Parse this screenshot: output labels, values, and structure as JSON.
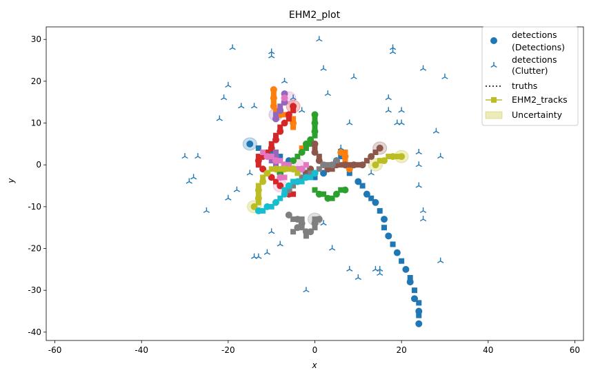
{
  "chart_data": {
    "type": "scatter",
    "title": "EHM2_plot",
    "xlabel": "x",
    "ylabel": "y",
    "xlim": [
      -62,
      62
    ],
    "ylim": [
      -42,
      33
    ],
    "xticks": [
      -60,
      -40,
      -20,
      0,
      20,
      40,
      60
    ],
    "yticks": [
      -40,
      -30,
      -20,
      -10,
      0,
      10,
      20,
      30
    ],
    "grid": false,
    "legend": {
      "location": "top-right",
      "entries": [
        {
          "label_lines": [
            "detections",
            "(Detections)"
          ],
          "marker": "circle",
          "color": "#1f77b4"
        },
        {
          "label_lines": [
            "detections",
            "(Clutter)"
          ],
          "marker": "tri_up",
          "color": "#1f77b4"
        },
        {
          "label_lines": [
            "truths"
          ],
          "marker": "dotted-line",
          "color": "#000000"
        },
        {
          "label_lines": [
            "EHM2_tracks"
          ],
          "marker": "line-square",
          "color": "#bcbd22"
        },
        {
          "label_lines": [
            "Uncertainty"
          ],
          "marker": "patch",
          "color": "#bcbd22"
        }
      ]
    },
    "clutter": [
      [
        -25,
        -11
      ],
      [
        -29,
        -4
      ],
      [
        -28,
        -3
      ],
      [
        -30,
        2
      ],
      [
        -27,
        2
      ],
      [
        -22,
        11
      ],
      [
        -21,
        16
      ],
      [
        -20,
        19
      ],
      [
        -20,
        -8
      ],
      [
        -17,
        14
      ],
      [
        -18,
        -6
      ],
      [
        -15,
        -2
      ],
      [
        -14,
        14
      ],
      [
        -14,
        -22
      ],
      [
        -13,
        -22
      ],
      [
        -11,
        -21
      ],
      [
        -10,
        -16
      ],
      [
        -8,
        -19
      ],
      [
        -10,
        26
      ],
      [
        -10,
        27
      ],
      [
        -7,
        20
      ],
      [
        -5,
        16
      ],
      [
        -3,
        13
      ],
      [
        -2,
        -30
      ],
      [
        -19,
        28
      ],
      [
        1,
        30
      ],
      [
        2,
        23
      ],
      [
        2,
        -14
      ],
      [
        3,
        17
      ],
      [
        4,
        -20
      ],
      [
        6,
        4
      ],
      [
        8,
        -25
      ],
      [
        8,
        10
      ],
      [
        9,
        21
      ],
      [
        10,
        -27
      ],
      [
        13,
        -2
      ],
      [
        14,
        -25
      ],
      [
        15,
        -25
      ],
      [
        15,
        -26
      ],
      [
        17,
        13
      ],
      [
        17,
        16
      ],
      [
        18,
        27
      ],
      [
        18,
        28
      ],
      [
        19,
        10
      ],
      [
        20,
        13
      ],
      [
        20,
        10
      ],
      [
        24,
        3
      ],
      [
        24,
        0
      ],
      [
        24,
        -5
      ],
      [
        25,
        -11
      ],
      [
        25,
        -13
      ],
      [
        25,
        23
      ],
      [
        28,
        8
      ],
      [
        30,
        21
      ],
      [
        29,
        -23
      ],
      [
        29,
        2
      ]
    ],
    "tracks": [
      {
        "color": "#1f77b4",
        "points": [
          [
            -15,
            5
          ],
          [
            -13,
            4
          ],
          [
            -10,
            3
          ],
          [
            -8,
            2
          ],
          [
            -6,
            1
          ],
          [
            -4,
            -1
          ],
          [
            -2,
            -2
          ],
          [
            0,
            -3
          ],
          [
            2,
            -2
          ],
          [
            3,
            -1
          ],
          [
            5,
            1
          ],
          [
            6,
            2
          ],
          [
            7,
            0
          ],
          [
            8,
            -2
          ],
          [
            10,
            -4
          ],
          [
            11,
            -5
          ],
          [
            12,
            -7
          ],
          [
            13,
            -8
          ],
          [
            14,
            -9
          ],
          [
            15,
            -11
          ],
          [
            16,
            -13
          ],
          [
            16,
            -15
          ],
          [
            17,
            -17
          ],
          [
            18,
            -19
          ],
          [
            19,
            -21
          ],
          [
            20,
            -23
          ],
          [
            21,
            -25
          ],
          [
            22,
            -27
          ],
          [
            22,
            -28
          ],
          [
            23,
            -30
          ],
          [
            23,
            -32
          ],
          [
            24,
            -33
          ],
          [
            24,
            -35
          ],
          [
            24,
            -36
          ],
          [
            24,
            -38
          ]
        ]
      },
      {
        "color": "#ff7f0e",
        "points": [
          [
            -9.5,
            18
          ],
          [
            -9.5,
            17
          ],
          [
            -9.5,
            16
          ],
          [
            -9.5,
            15
          ],
          [
            -9.5,
            14
          ],
          [
            -9,
            13
          ],
          [
            -8,
            12
          ],
          [
            -7,
            12
          ],
          [
            -6,
            12
          ],
          [
            -5,
            11
          ],
          [
            -5,
            10
          ],
          [
            -5,
            9
          ],
          [
            6,
            3
          ],
          [
            7,
            3
          ],
          [
            7,
            2
          ],
          [
            7,
            1
          ],
          [
            8,
            -1
          ],
          [
            -3,
            4
          ],
          [
            -3,
            3
          ]
        ]
      },
      {
        "color": "#2ca02c",
        "points": [
          [
            0,
            12
          ],
          [
            0,
            11
          ],
          [
            0,
            10
          ],
          [
            0,
            9
          ],
          [
            0,
            8
          ],
          [
            0,
            7
          ],
          [
            -1,
            6
          ],
          [
            -1,
            5
          ],
          [
            -2,
            5
          ],
          [
            -2,
            4
          ],
          [
            -3,
            3
          ],
          [
            -4,
            2
          ],
          [
            -5,
            1
          ],
          [
            -6,
            0
          ],
          [
            -7,
            0
          ],
          [
            -8,
            -1
          ],
          [
            -8,
            -2
          ],
          [
            0,
            -6
          ],
          [
            1,
            -7
          ],
          [
            2,
            -7
          ],
          [
            3,
            -8
          ],
          [
            4,
            -8
          ],
          [
            5,
            -7
          ],
          [
            6,
            -6
          ],
          [
            7,
            -6
          ]
        ]
      },
      {
        "color": "#d62728",
        "points": [
          [
            -5,
            14
          ],
          [
            -5,
            13
          ],
          [
            -6,
            12
          ],
          [
            -6,
            11
          ],
          [
            -7,
            10
          ],
          [
            -8,
            9
          ],
          [
            -8,
            8
          ],
          [
            -9,
            7
          ],
          [
            -9,
            6
          ],
          [
            -10,
            5
          ],
          [
            -10,
            4
          ],
          [
            -11,
            3
          ],
          [
            -12,
            2
          ],
          [
            -13,
            2
          ],
          [
            -13,
            1
          ],
          [
            -13,
            0
          ],
          [
            -12,
            -1
          ],
          [
            -11,
            -2
          ],
          [
            -10,
            -3
          ],
          [
            -9,
            -4
          ],
          [
            -8,
            -5
          ],
          [
            -7,
            -6
          ],
          [
            -6,
            -7
          ],
          [
            -5,
            -7
          ]
        ]
      },
      {
        "color": "#9467bd",
        "points": [
          [
            -7,
            17
          ],
          [
            -7,
            16
          ],
          [
            -7,
            15
          ],
          [
            -8,
            14
          ],
          [
            -8,
            13
          ],
          [
            -9,
            12
          ],
          [
            -9,
            11
          ],
          [
            -10,
            1
          ],
          [
            -10,
            2
          ],
          [
            -9,
            3
          ],
          [
            -9,
            2
          ],
          [
            -9,
            0
          ]
        ]
      },
      {
        "color": "#8c564b",
        "points": [
          [
            0,
            5
          ],
          [
            0,
            4
          ],
          [
            0,
            3
          ],
          [
            1,
            2
          ],
          [
            1,
            1
          ],
          [
            2,
            0
          ],
          [
            3,
            -1
          ],
          [
            4,
            -1
          ],
          [
            5,
            0
          ],
          [
            6,
            0
          ],
          [
            7,
            0
          ],
          [
            8,
            0
          ],
          [
            9,
            0
          ],
          [
            10,
            0
          ],
          [
            11,
            0
          ],
          [
            12,
            1
          ],
          [
            13,
            2
          ],
          [
            14,
            3
          ],
          [
            15,
            4
          ],
          [
            -2,
            -2
          ],
          [
            -1,
            -1
          ]
        ]
      },
      {
        "color": "#e377c2",
        "points": [
          [
            -7,
            16
          ],
          [
            -12,
            3
          ],
          [
            -11,
            2
          ],
          [
            -10,
            2
          ],
          [
            -9,
            1
          ],
          [
            -8,
            1
          ],
          [
            -7,
            0
          ],
          [
            -6,
            0
          ],
          [
            -5,
            -1
          ],
          [
            -4,
            -1
          ],
          [
            -3,
            -1
          ],
          [
            -2,
            0
          ],
          [
            -8,
            -3
          ],
          [
            -7,
            -3
          ]
        ]
      },
      {
        "color": "#7f7f7f",
        "points": [
          [
            -6,
            -6
          ],
          [
            -5,
            -5
          ],
          [
            -4,
            -4
          ],
          [
            -3,
            -3
          ],
          [
            -2,
            -3
          ],
          [
            -1,
            -2
          ],
          [
            0,
            -2
          ],
          [
            1,
            -1
          ],
          [
            2,
            0
          ],
          [
            3,
            0
          ],
          [
            4,
            0
          ],
          [
            5,
            1
          ],
          [
            -6,
            -12
          ],
          [
            -5,
            -13
          ],
          [
            -4,
            -13
          ],
          [
            -3,
            -13
          ],
          [
            -3,
            -14
          ],
          [
            -3,
            -15
          ],
          [
            -2,
            -16
          ],
          [
            -2,
            -17
          ],
          [
            -1,
            -16
          ],
          [
            0,
            -15
          ],
          [
            0,
            -14
          ],
          [
            0,
            -13
          ],
          [
            1,
            -13
          ],
          [
            -5,
            -16
          ],
          [
            -4,
            -15
          ]
        ]
      },
      {
        "color": "#bcbd22",
        "points": [
          [
            -14,
            -10
          ],
          [
            -13,
            -9
          ],
          [
            -13,
            -8
          ],
          [
            -13,
            -7
          ],
          [
            -13,
            -6
          ],
          [
            -13,
            -5
          ],
          [
            -12,
            -4
          ],
          [
            -12,
            -3
          ],
          [
            -11,
            -2
          ],
          [
            -10,
            -1
          ],
          [
            -9,
            -1
          ],
          [
            -8,
            -1
          ],
          [
            -7,
            -1
          ],
          [
            -6,
            -1
          ],
          [
            -5,
            -1
          ],
          [
            -4,
            -2
          ],
          [
            14,
            0
          ],
          [
            15,
            1
          ],
          [
            16,
            1
          ],
          [
            17,
            2
          ],
          [
            18,
            2
          ],
          [
            19,
            2
          ],
          [
            20,
            2
          ]
        ]
      },
      {
        "color": "#17becf",
        "points": [
          [
            -13,
            -11
          ],
          [
            -12,
            -11
          ],
          [
            -11,
            -10
          ],
          [
            -10,
            -10
          ],
          [
            -9,
            -9
          ],
          [
            -8,
            -8
          ],
          [
            -7,
            -7
          ],
          [
            -7,
            -6
          ],
          [
            -6,
            -5
          ],
          [
            -5,
            -4
          ],
          [
            -4,
            -4
          ],
          [
            -3,
            -4
          ],
          [
            -2,
            -3
          ],
          [
            -1,
            -3
          ],
          [
            0,
            -2
          ]
        ]
      }
    ],
    "ellipses": [
      {
        "center": [
          -15,
          5
        ],
        "color": "#1f77b4"
      },
      {
        "center": [
          -6,
          16
        ],
        "color": "#e377c2"
      },
      {
        "center": [
          -5,
          14
        ],
        "color": "#d62728"
      },
      {
        "center": [
          -9,
          12
        ],
        "color": "#9467bd"
      },
      {
        "center": [
          15,
          4
        ],
        "color": "#8c564b"
      },
      {
        "center": [
          20,
          2
        ],
        "color": "#bcbd22"
      },
      {
        "center": [
          14,
          0
        ],
        "color": "#bcbd22"
      },
      {
        "center": [
          -14,
          -10
        ],
        "color": "#bcbd22"
      },
      {
        "center": [
          -8,
          -5
        ],
        "color": "#e377c2"
      },
      {
        "center": [
          -4,
          0
        ],
        "color": "#e377c2"
      },
      {
        "center": [
          0,
          -13
        ],
        "color": "#7f7f7f"
      },
      {
        "center": [
          -2,
          -2
        ],
        "color": "#7f7f7f"
      }
    ]
  }
}
